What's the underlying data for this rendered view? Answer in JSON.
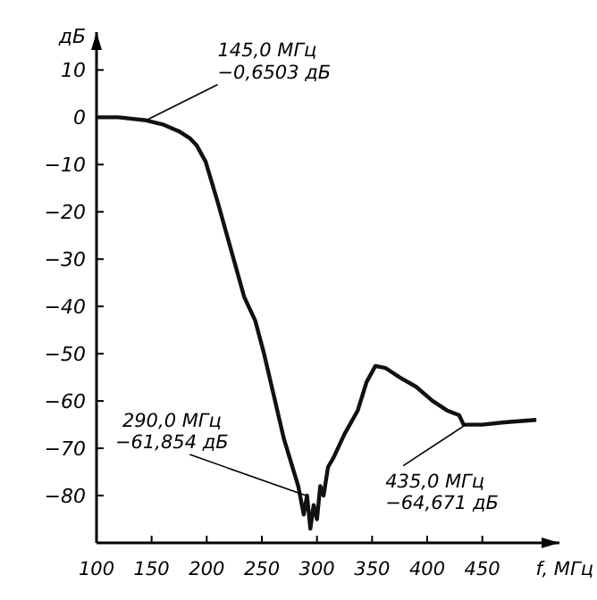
{
  "chart_data": {
    "type": "line",
    "xlabel": "f, МГц",
    "ylabel": "дБ",
    "xlim": [
      100,
      520
    ],
    "ylim": [
      -90,
      18
    ],
    "xticks": [
      100,
      150,
      200,
      250,
      300,
      350,
      400,
      450
    ],
    "yticks": [
      {
        "value": 10,
        "label": "10"
      },
      {
        "value": 0,
        "label": "0"
      },
      {
        "value": -10,
        "label": "−10"
      },
      {
        "value": -20,
        "label": "−20"
      },
      {
        "value": -30,
        "label": "−30"
      },
      {
        "value": -40,
        "label": "−40"
      },
      {
        "value": -50,
        "label": "−50"
      },
      {
        "value": -60,
        "label": "−60"
      },
      {
        "value": -70,
        "label": "−70"
      },
      {
        "value": -80,
        "label": "−80"
      }
    ],
    "grid": false,
    "marker": "none",
    "line_style": "solid",
    "series": [
      {
        "color": "#111111",
        "x": [
          100,
          120,
          145,
          160,
          175,
          185,
          191,
          199,
          210,
          222,
          234,
          244,
          252,
          260,
          270,
          283,
          288,
          291,
          294,
          297,
          300,
          303,
          306,
          310,
          315,
          325,
          337,
          345,
          353,
          362,
          375,
          390,
          405,
          418,
          429,
          433,
          439,
          450,
          470,
          499
        ],
        "values": [
          0,
          0,
          -0.65,
          -1.5,
          -3,
          -4.5,
          -6,
          -9.4,
          -18,
          -28,
          -38,
          -43,
          -50,
          -58,
          -68,
          -78,
          -84,
          -80,
          -87,
          -82,
          -85,
          -78,
          -80,
          -74,
          -72,
          -67,
          -62,
          -56,
          -52.6,
          -53,
          -55,
          -57,
          -60,
          -62,
          -63,
          -65,
          -65,
          -65,
          -64.5,
          -64
        ]
      }
    ],
    "annotations": [
      {
        "text": "145,0 МГц\n−0,6503 дБ",
        "x": 145,
        "y": -0.65
      },
      {
        "text": "290,0 МГц\n−61,854 дБ",
        "x": 290,
        "y": -80
      },
      {
        "text": "435,0 МГц\n−64,671 дБ",
        "x": 435,
        "y": -65
      }
    ]
  }
}
